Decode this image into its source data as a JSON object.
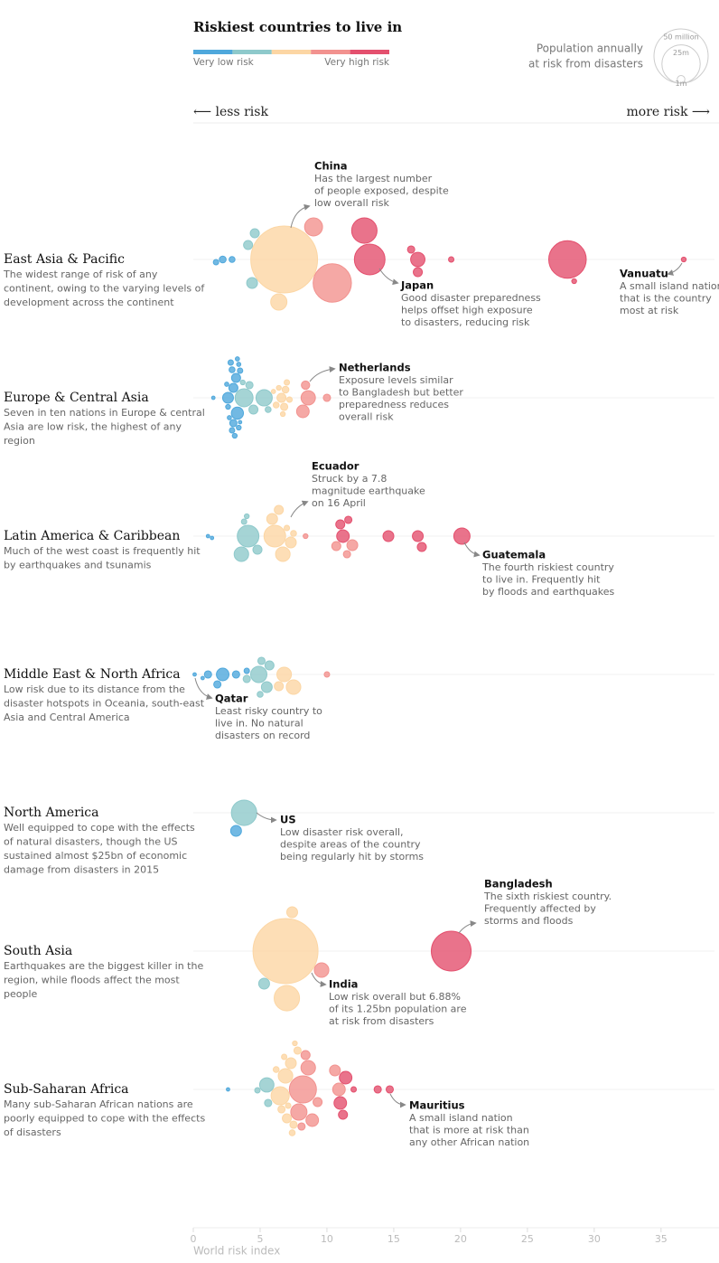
{
  "chart_data": {
    "type": "beeswarm",
    "title": "Riskiest countries to live in",
    "scale_colors": [
      "#4fa8dc",
      "#8ec9cb",
      "#fcd6a4",
      "#f2928f",
      "#e4506e"
    ],
    "scale_low_label": "Very low risk",
    "scale_high_label": "Very high risk",
    "size_legend": {
      "title": [
        "Population annually",
        "at risk from disasters"
      ],
      "items": [
        {
          "value": 50,
          "label": "50 million"
        },
        {
          "value": 25,
          "label": "25m"
        },
        {
          "value": 1,
          "label": "1m"
        }
      ]
    },
    "less_label": "⟵ less risk",
    "more_label": "more risk ⟶",
    "xlabel": "World risk index",
    "xlim": [
      0,
      39
    ],
    "xticks": [
      0,
      5,
      10,
      15,
      20,
      25,
      30,
      35
    ],
    "regions": [
      {
        "name": "East Asia & Pacific",
        "description": [
          "The widest range of risk of any",
          "continent, owing to the varying levels of",
          "development across the continent"
        ],
        "groups": [
          {
            "color": "#4fa8dc",
            "x": [
              1.7,
              2.2,
              2.9
            ],
            "size": [
              0.5,
              0.8,
              0.6
            ]
          },
          {
            "color": "#8ec9cb",
            "x": [
              4.1,
              4.4,
              4.6
            ],
            "size": [
              1.4,
              2,
              1.4
            ]
          },
          {
            "color": "#fcd6a4",
            "x": [
              6.8,
              6.4
            ],
            "size": [
              76,
              4.5
            ]
          },
          {
            "color": "#f2928f",
            "x": [
              10.4,
              9.0
            ],
            "size": [
              25,
              5.5
            ]
          },
          {
            "color": "#e4506e",
            "x": [
              12.8,
              13.2,
              16.3,
              16.8,
              16.8,
              19.3,
              28.0,
              28.5,
              36.7
            ],
            "size": [
              11,
              16,
              0.9,
              1.4,
              3.5,
              0.5,
              24,
              0.4,
              0.4
            ]
          }
        ],
        "annotations": [
          {
            "title": "China",
            "lines": [
              "Has the largest number",
              "of people exposed, despite",
              "low overall risk"
            ]
          },
          {
            "title": "Japan",
            "lines": [
              "Good disaster preparedness",
              "helps offset high exposure",
              "to disasters, reducing risk"
            ]
          },
          {
            "title": "Vanuatu",
            "lines": [
              "A small island nation",
              "that is the country",
              "most at risk"
            ]
          }
        ]
      },
      {
        "name": "Europe & Central Asia",
        "description": [
          "Seven in ten nations in Europe & central",
          "Asia are low risk, the highest of any",
          "region"
        ],
        "groups": [
          {
            "color": "#4fa8dc",
            "x": [
              1.5,
              2.6,
              2.9,
              3.1,
              2.7,
              3.0,
              3.3,
              2.8,
              3.4,
              3.0,
              2.6,
              3.2,
              3.5,
              2.9,
              3.4,
              3.3,
              3.5,
              2.5
            ],
            "size": [
              0.2,
              0.4,
              0.5,
              0.4,
              0.3,
              1.4,
              2.5,
              0.5,
              0.3,
              0.9,
              2,
              1.4,
              0.5,
              0.6,
              0.4,
              0.3,
              0.2,
              0.3
            ]
          },
          {
            "color": "#8ec9cb",
            "x": [
              3.8,
              4.5,
              4.2,
              5.3,
              5.6,
              3.7
            ],
            "size": [
              5.5,
              1.4,
              0.9,
              4.5,
              0.6,
              0.4
            ]
          },
          {
            "color": "#fcd6a4",
            "x": [
              6.2,
              6.6,
              6.8,
              7.0,
              6.4,
              6.9,
              7.2,
              6.0,
              6.7
            ],
            "size": [
              0.6,
              1.4,
              0.9,
              0.5,
              0.4,
              0.8,
              0.5,
              0.3,
              0.4
            ]
          },
          {
            "color": "#f2928f",
            "x": [
              8.2,
              8.6,
              10.0,
              8.4
            ],
            "size": [
              2.7,
              3.5,
              0.9,
              1.2
            ]
          }
        ],
        "annotations": [
          {
            "title": "Netherlands",
            "lines": [
              "Exposure levels similar",
              "to Bangladesh but better",
              "preparedness reduces",
              "overall risk"
            ]
          }
        ]
      },
      {
        "name": "Latin America & Caribbean",
        "description": [
          "Much of the west coast is frequently hit",
          "by earthquakes and tsunamis"
        ],
        "groups": [
          {
            "color": "#4fa8dc",
            "x": [
              1.1,
              1.4
            ],
            "size": [
              0.2,
              0.2
            ]
          },
          {
            "color": "#8ec9cb",
            "x": [
              3.6,
              4.1,
              3.8,
              4.8,
              4.0
            ],
            "size": [
              3.6,
              8,
              0.5,
              1.4,
              0.4
            ]
          },
          {
            "color": "#fcd6a4",
            "x": [
              6.1,
              6.7,
              5.9,
              7.3,
              7.5,
              6.4,
              7.0
            ],
            "size": [
              8,
              3.6,
              2,
              2,
              0.6,
              1.4,
              0.5
            ]
          },
          {
            "color": "#f2928f",
            "x": [
              8.4,
              10.7,
              11.9,
              11.5
            ],
            "size": [
              0.4,
              1.4,
              2,
              0.9
            ]
          },
          {
            "color": "#e4506e",
            "x": [
              11.2,
              11.0,
              14.6,
              16.8,
              17.1,
              20.1,
              11.6
            ],
            "size": [
              2.7,
              1.4,
              2,
              2,
              1.4,
              4.5,
              0.9
            ]
          }
        ],
        "annotations": [
          {
            "title": "Ecuador",
            "lines": [
              "Struck by a 7.8",
              "magnitude earthquake",
              "on 16 April"
            ]
          },
          {
            "title": "Guatemala",
            "lines": [
              "The fourth riskiest country",
              "to live in. Frequently hit",
              "by floods and earthquakes"
            ]
          }
        ]
      },
      {
        "name": "Middle East & North Africa",
        "description": [
          "Low risk due to its distance from the",
          "disaster hotspots in Oceania, south-east",
          "Asia and Central America"
        ],
        "groups": [
          {
            "color": "#4fa8dc",
            "x": [
              0.1,
              0.7,
              1.1,
              2.2,
              1.8,
              3.2,
              4.0
            ],
            "size": [
              0.2,
              0.2,
              0.9,
              2.7,
              0.9,
              0.9,
              0.5
            ]
          },
          {
            "color": "#8ec9cb",
            "x": [
              4.9,
              5.1,
              5.5,
              5.7,
              4.0,
              5.0
            ],
            "size": [
              4.5,
              0.9,
              2,
              1.4,
              0.9,
              0.6
            ]
          },
          {
            "color": "#fcd6a4",
            "x": [
              6.8,
              7.5,
              6.4
            ],
            "size": [
              3.6,
              3.6,
              1.4
            ]
          },
          {
            "color": "#f2928f",
            "x": [
              10.0
            ],
            "size": [
              0.5
            ]
          }
        ],
        "annotations": [
          {
            "title": "Qatar",
            "lines": [
              "Least risky country to",
              "live in. No natural",
              "disasters on record"
            ]
          }
        ]
      },
      {
        "name": "North America",
        "description": [
          "Well equipped to cope with the effects",
          "of natural disasters, though the US",
          "sustained almost $25bn of economic",
          "damage from disasters in 2015"
        ],
        "groups": [
          {
            "color": "#4fa8dc",
            "x": [
              3.2
            ],
            "size": [
              2
            ]
          },
          {
            "color": "#8ec9cb",
            "x": [
              3.8
            ],
            "size": [
              11
            ]
          }
        ],
        "annotations": [
          {
            "title": "US",
            "lines": [
              "Low disaster risk overall,",
              "despite areas of the country",
              "being regularly hit by storms"
            ]
          }
        ]
      },
      {
        "name": "South Asia",
        "description": [
          "Earthquakes are the biggest killer in the",
          "region, while floods affect the most",
          "people"
        ],
        "groups": [
          {
            "color": "#8ec9cb",
            "x": [
              5.3
            ],
            "size": [
              2
            ]
          },
          {
            "color": "#fcd6a4",
            "x": [
              6.9,
              7.0,
              7.4
            ],
            "size": [
              72,
              11,
              2
            ]
          },
          {
            "color": "#f2928f",
            "x": [
              9.6
            ],
            "size": [
              3.6
            ]
          },
          {
            "color": "#e4506e",
            "x": [
              19.3
            ],
            "size": [
              27
            ]
          }
        ],
        "annotations": [
          {
            "title": "Bangladesh",
            "lines": [
              "The sixth riskiest country.",
              "Frequently affected by",
              "storms and floods"
            ]
          },
          {
            "title": "India",
            "lines": [
              "Low risk overall but 6.88%",
              "of its 1.25bn population are",
              "at risk from disasters"
            ]
          }
        ]
      },
      {
        "name": "Sub-Saharan Africa",
        "description": [
          "Many sub-Saharan African nations are",
          "poorly equipped to cope with the effects",
          "of disasters"
        ],
        "groups": [
          {
            "color": "#4fa8dc",
            "x": [
              2.6
            ],
            "size": [
              0.2
            ]
          },
          {
            "color": "#8ec9cb",
            "x": [
              4.8,
              5.5,
              5.6
            ],
            "size": [
              0.5,
              3.5,
              0.9
            ]
          },
          {
            "color": "#fcd6a4",
            "x": [
              6.5,
              6.9,
              7.3,
              7.0,
              6.6,
              7.5,
              6.2,
              7.8,
              7.1,
              7.4,
              6.8,
              7.6
            ],
            "size": [
              5.6,
              3.6,
              2,
              1.4,
              0.9,
              0.9,
              0.6,
              0.9,
              0.5,
              0.6,
              0.5,
              0.4
            ]
          },
          {
            "color": "#f2928f",
            "x": [
              8.2,
              7.9,
              8.6,
              8.9,
              10.9,
              10.6,
              8.4,
              9.3,
              8.1
            ],
            "size": [
              12.5,
              4.5,
              3.6,
              2.7,
              2.7,
              2,
              1.4,
              1.4,
              0.9
            ]
          },
          {
            "color": "#e4506e",
            "x": [
              11.0,
              11.4,
              12.0,
              13.8,
              14.7,
              11.2
            ],
            "size": [
              2.7,
              2.7,
              0.5,
              0.9,
              0.9,
              1.4
            ]
          }
        ],
        "annotations": [
          {
            "title": "Mauritius",
            "lines": [
              "A small island nation",
              "that is more at risk than",
              "any other African nation"
            ]
          }
        ]
      }
    ]
  }
}
